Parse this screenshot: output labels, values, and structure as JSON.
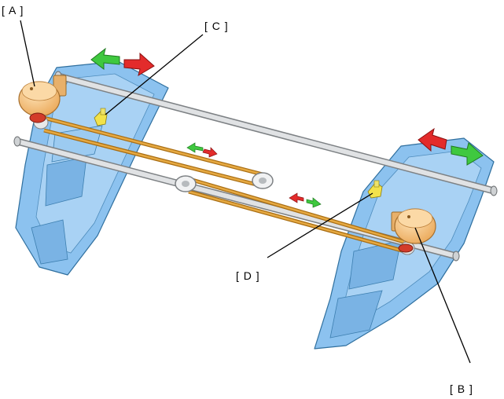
{
  "callouts": {
    "a": "[ A ]",
    "b": "[ B ]",
    "c": "[ C ]",
    "d": "[ D ]"
  },
  "colors": {
    "tray_fill": "#8cc2ef",
    "tray_stroke": "#2f6f9e",
    "rail": "#d7d9db",
    "belt": "#d99a2b",
    "motor": "#f7c98a",
    "sensor": "#f2e24a",
    "arrow_green": "#3fc83f",
    "arrow_red": "#e32b2b"
  }
}
